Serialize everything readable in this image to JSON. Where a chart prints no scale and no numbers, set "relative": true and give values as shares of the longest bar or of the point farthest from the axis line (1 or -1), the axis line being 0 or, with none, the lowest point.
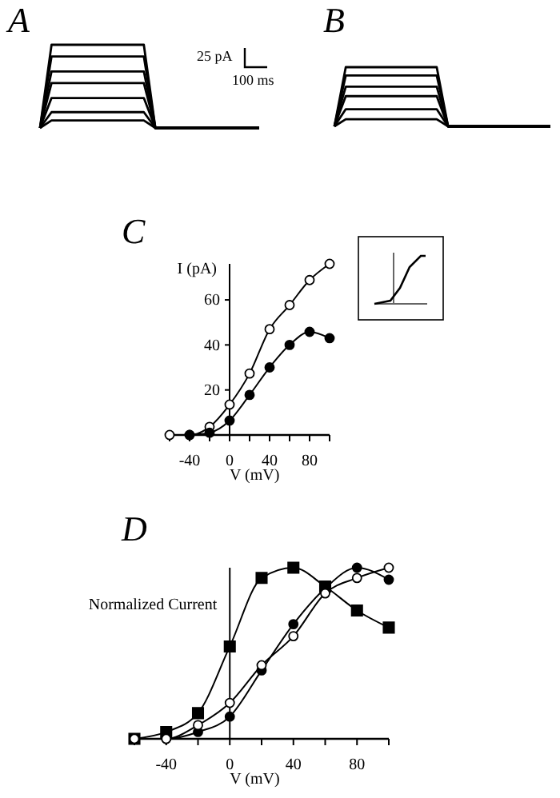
{
  "chart_data": [
    {
      "type": "line",
      "title": "A",
      "relative": true,
      "categories": [
        null,
        null,
        null,
        null,
        null,
        null,
        null,
        null,
        null,
        null,
        null,
        null,
        null,
        null,
        null,
        null,
        null,
        null,
        null,
        null
      ],
      "annotations": [
        "25 pA",
        "100 ms"
      ],
      "series": [
        {
          "color": "#000000",
          "values": [
            0,
            0.09,
            0.09,
            0.09,
            0.09,
            0.09,
            0.09,
            0.09,
            0.09,
            0.09,
            0,
            0,
            0,
            0,
            0,
            0,
            0,
            0,
            0,
            0
          ]
        },
        {
          "color": "#000000",
          "values": [
            0,
            0.19,
            0.19,
            0.19,
            0.19,
            0.19,
            0.19,
            0.19,
            0.19,
            0.19,
            0,
            0,
            0,
            0,
            0,
            0,
            0,
            0,
            0,
            0
          ]
        },
        {
          "color": "#000000",
          "values": [
            0,
            0.36,
            0.36,
            0.36,
            0.36,
            0.36,
            0.36,
            0.36,
            0.36,
            0.36,
            0,
            0,
            0,
            0,
            0,
            0,
            0,
            0,
            0,
            0
          ]
        },
        {
          "color": "#000000",
          "values": [
            0,
            0.54,
            0.54,
            0.54,
            0.54,
            0.54,
            0.54,
            0.54,
            0.54,
            0.54,
            0,
            0,
            0,
            0,
            0,
            0,
            0,
            0,
            0,
            0
          ]
        },
        {
          "color": "#000000",
          "values": [
            0,
            0.68,
            0.68,
            0.68,
            0.68,
            0.68,
            0.68,
            0.68,
            0.68,
            0.68,
            0,
            0,
            0,
            0,
            0,
            0,
            0,
            0,
            0,
            0
          ]
        },
        {
          "color": "#000000",
          "values": [
            0,
            0.86,
            0.86,
            0.86,
            0.86,
            0.86,
            0.86,
            0.86,
            0.86,
            0.86,
            0,
            0,
            0,
            0,
            0,
            0,
            0,
            0,
            0,
            0
          ]
        },
        {
          "color": "#000000",
          "values": [
            0,
            1,
            1,
            1,
            1,
            1,
            1,
            1,
            1,
            1,
            0,
            0,
            0,
            0,
            0,
            0,
            0,
            0,
            0,
            0
          ]
        }
      ]
    },
    {
      "type": "line",
      "title": "B",
      "relative": true,
      "categories": [
        null,
        null,
        null,
        null,
        null,
        null,
        null,
        null,
        null,
        null,
        null,
        null,
        null,
        null,
        null,
        null,
        null,
        null,
        null,
        null
      ],
      "series": [
        {
          "color": "#000000",
          "values": [
            0,
            0.12,
            0.12,
            0.12,
            0.12,
            0.12,
            0.12,
            0.12,
            0.12,
            0.12,
            0,
            0,
            0,
            0,
            0,
            0,
            0,
            0,
            0,
            0
          ]
        },
        {
          "color": "#000000",
          "values": [
            0,
            0.29,
            0.29,
            0.29,
            0.29,
            0.29,
            0.29,
            0.29,
            0.29,
            0.29,
            0,
            0,
            0,
            0,
            0,
            0,
            0,
            0,
            0,
            0
          ]
        },
        {
          "color": "#000000",
          "values": [
            0,
            0.51,
            0.51,
            0.51,
            0.51,
            0.51,
            0.51,
            0.51,
            0.51,
            0.51,
            0,
            0,
            0,
            0,
            0,
            0,
            0,
            0,
            0,
            0
          ]
        },
        {
          "color": "#000000",
          "values": [
            0,
            0.67,
            0.67,
            0.67,
            0.67,
            0.67,
            0.67,
            0.67,
            0.67,
            0.67,
            0,
            0,
            0,
            0,
            0,
            0,
            0,
            0,
            0,
            0
          ]
        },
        {
          "color": "#000000",
          "values": [
            0,
            0.86,
            0.86,
            0.86,
            0.86,
            0.86,
            0.86,
            0.86,
            0.86,
            0.86,
            0,
            0,
            0,
            0,
            0,
            0,
            0,
            0,
            0,
            0
          ]
        },
        {
          "color": "#000000",
          "values": [
            0,
            1,
            1,
            1,
            1,
            1,
            1,
            1,
            1,
            1,
            0,
            0,
            0,
            0,
            0,
            0,
            0,
            0,
            0,
            0
          ]
        }
      ]
    },
    {
      "type": "line",
      "title": "C",
      "xlabel": "V (mV)",
      "ylabel": "I (pA)",
      "marker": "circle",
      "x": [
        -60,
        -40,
        -20,
        0,
        20,
        40,
        60,
        80,
        100
      ],
      "xlim": [
        -60,
        100
      ],
      "ylim": [
        0,
        76
      ],
      "xticks": [
        {
          "value": -60,
          "label": null
        },
        -40,
        {
          "value": -20,
          "label": null
        },
        0,
        {
          "value": 20,
          "label": null
        },
        40,
        {
          "value": 60,
          "label": null
        },
        80,
        {
          "value": 100,
          "label": null
        }
      ],
      "yticks": [
        20,
        40,
        60
      ],
      "series": [
        {
          "color": "#ffffff",
          "values": [
            0,
            0,
            3.6,
            13.5,
            27.3,
            47,
            57.7,
            68.8,
            76
          ]
        },
        {
          "color": "#000000",
          "values": [
            null,
            0,
            1,
            6.4,
            17.8,
            30,
            40,
            45.8,
            43
          ]
        }
      ]
    },
    {
      "type": "line",
      "title": "D",
      "xlabel": "V (mV)",
      "ylabel": "Normalized Current",
      "relative": true,
      "x": [
        -60,
        -40,
        -20,
        0,
        20,
        40,
        60,
        80,
        100
      ],
      "xlim": [
        -60,
        100
      ],
      "xticks": [
        {
          "value": -60,
          "label": null
        },
        -40,
        {
          "value": -20,
          "label": null
        },
        0,
        {
          "value": 20,
          "label": null
        },
        40,
        {
          "value": 60,
          "label": null
        },
        80,
        {
          "value": 100,
          "label": null
        }
      ],
      "series": [
        {
          "color": "#000000",
          "marker": "square",
          "values": [
            0,
            0.04,
            0.15,
            0.54,
            0.94,
            1,
            0.89,
            0.75,
            0.65
          ]
        },
        {
          "color": "#000000",
          "marker": "circle",
          "values": [
            0,
            0,
            0.04,
            0.13,
            0.4,
            0.67,
            0.88,
            1,
            0.93
          ]
        },
        {
          "color": "#ffffff",
          "marker": "circle",
          "values": [
            0,
            0,
            0.08,
            0.21,
            0.43,
            0.6,
            0.85,
            0.94,
            1
          ]
        }
      ]
    }
  ]
}
